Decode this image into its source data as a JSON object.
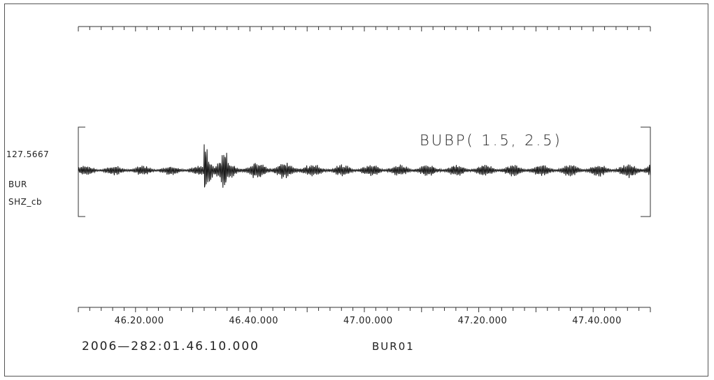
{
  "chart_data": {
    "type": "line",
    "title": "",
    "channel": {
      "value": "127.5667",
      "station": "BUR",
      "channel": "SHZ_cb"
    },
    "filter_label": "BUBP( 1.5, 2.5)",
    "start_time": "2006—282:01.46.10.000",
    "network_label": "BUR01",
    "x_axis": {
      "start_seconds": 0,
      "end_seconds": 100,
      "tick_labels": [
        "46.20.000",
        "46.40.000",
        "47.00.000",
        "47.20.000",
        "47.40.000"
      ],
      "tick_label_seconds": [
        10,
        30,
        50,
        70,
        90
      ]
    },
    "waveform": {
      "description_segments": [
        {
          "from": 0,
          "to": 22,
          "amplitude": 0.12
        },
        {
          "from": 22,
          "to": 23.5,
          "amplitude": 0.9
        },
        {
          "from": 23.5,
          "to": 26,
          "amplitude": 0.55
        },
        {
          "from": 26,
          "to": 30,
          "amplitude": 0.2
        },
        {
          "from": 30,
          "to": 40,
          "amplitude": 0.22
        },
        {
          "from": 40,
          "to": 96,
          "amplitude": 0.15
        },
        {
          "from": 96,
          "to": 100,
          "amplitude": 0.2
        }
      ]
    },
    "colors": {
      "trace": "#111111",
      "axis": "#333333"
    }
  }
}
